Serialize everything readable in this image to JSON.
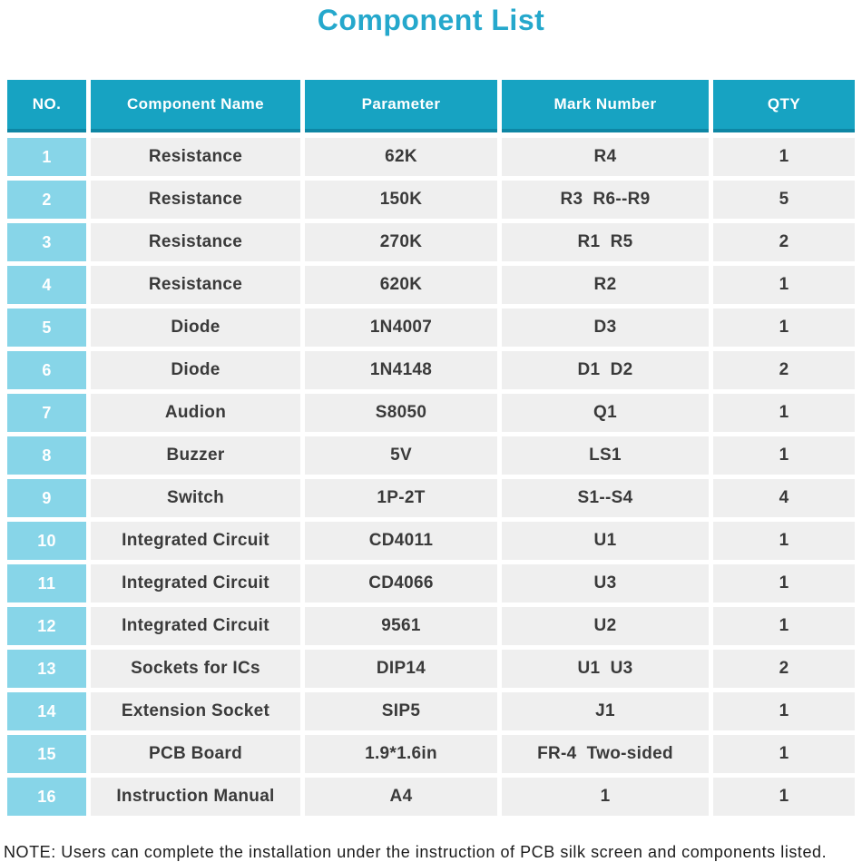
{
  "page": {
    "title": "Component List",
    "note": "NOTE: Users can complete the installation under the instruction of PCB silk screen and components listed."
  },
  "colors": {
    "page_bg": "#FFFFFF",
    "title": "#25A8CC",
    "header_bg": "#17A3C2",
    "header_border": "#0E86A4",
    "header_text": "#FFFFFF",
    "no_cell_bg": "#87D5E8",
    "row_bg": "#EFEFEF",
    "cell_text": "#3A3A3A",
    "note_text": "#1C1C1C"
  },
  "table": {
    "headers": [
      "NO.",
      "Component Name",
      "Parameter",
      "Mark Number",
      "QTY"
    ],
    "rows": [
      {
        "no": "1",
        "name": "Resistance",
        "parameter": "62K",
        "mark": "R4",
        "qty": "1"
      },
      {
        "no": "2",
        "name": "Resistance",
        "parameter": "150K",
        "mark": "R3  R6--R9",
        "qty": "5"
      },
      {
        "no": "3",
        "name": "Resistance",
        "parameter": "270K",
        "mark": "R1  R5",
        "qty": "2"
      },
      {
        "no": "4",
        "name": "Resistance",
        "parameter": "620K",
        "mark": "R2",
        "qty": "1"
      },
      {
        "no": "5",
        "name": "Diode",
        "parameter": "1N4007",
        "mark": "D3",
        "qty": "1"
      },
      {
        "no": "6",
        "name": "Diode",
        "parameter": "1N4148",
        "mark": "D1  D2",
        "qty": "2"
      },
      {
        "no": "7",
        "name": "Audion",
        "parameter": "S8050",
        "mark": "Q1",
        "qty": "1"
      },
      {
        "no": "8",
        "name": "Buzzer",
        "parameter": "5V",
        "mark": "LS1",
        "qty": "1"
      },
      {
        "no": "9",
        "name": "Switch",
        "parameter": "1P-2T",
        "mark": "S1--S4",
        "qty": "4"
      },
      {
        "no": "10",
        "name": "Integrated Circuit",
        "parameter": "CD4011",
        "mark": "U1",
        "qty": "1"
      },
      {
        "no": "11",
        "name": "Integrated Circuit",
        "parameter": "CD4066",
        "mark": "U3",
        "qty": "1"
      },
      {
        "no": "12",
        "name": "Integrated Circuit",
        "parameter": "9561",
        "mark": "U2",
        "qty": "1"
      },
      {
        "no": "13",
        "name": "Sockets for ICs",
        "parameter": "DIP14",
        "mark": "U1  U3",
        "qty": "2"
      },
      {
        "no": "14",
        "name": "Extension Socket",
        "parameter": "SIP5",
        "mark": "J1",
        "qty": "1"
      },
      {
        "no": "15",
        "name": "PCB Board",
        "parameter": "1.9*1.6in",
        "mark": "FR-4  Two-sided",
        "qty": "1"
      },
      {
        "no": "16",
        "name": "Instruction Manual",
        "parameter": "A4",
        "mark": "1",
        "qty": "1"
      }
    ]
  }
}
